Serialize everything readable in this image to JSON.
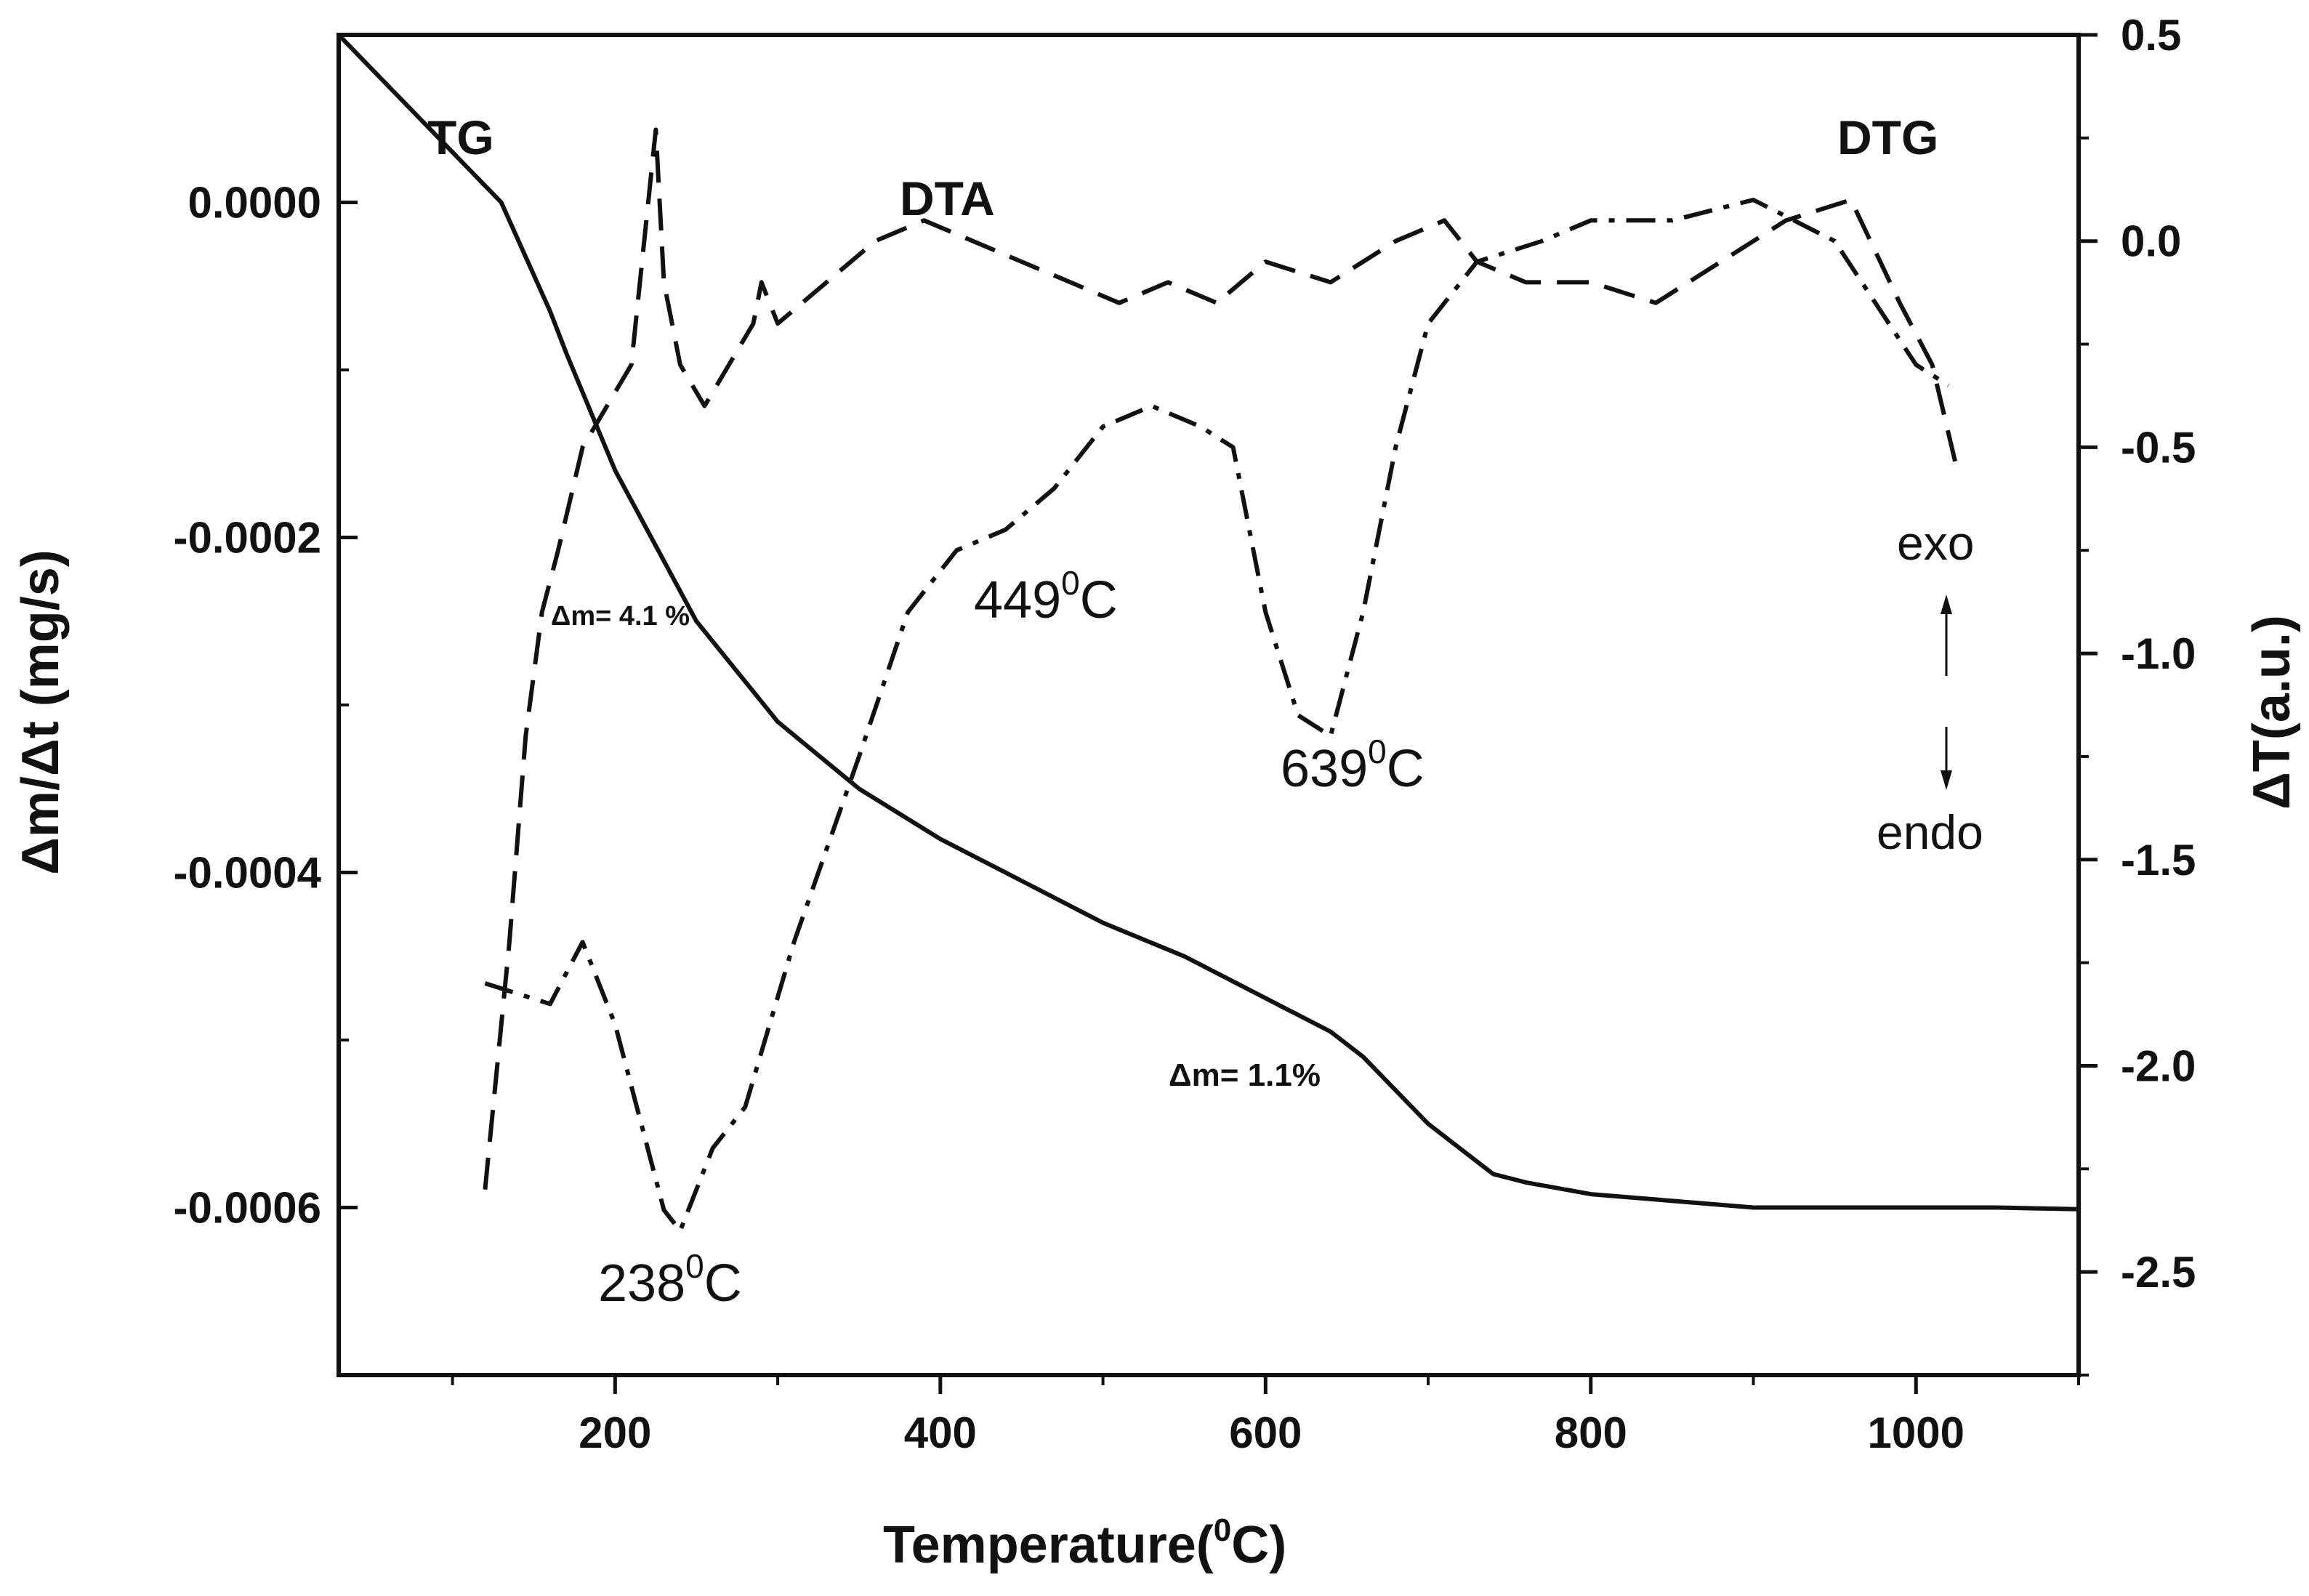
{
  "chart_data": {
    "type": "line",
    "title": "",
    "xlabel": "Temperature(",
    "xlabel_sup": "0",
    "xlabel_unit": "C)",
    "ylabel_left": "Δm/Δt (mg/s)",
    "ylabel_right": "ΔT(a.u.)",
    "xlim": [
      30,
      1100
    ],
    "ylim_left": [
      -0.0007,
      0.0001
    ],
    "ylim_right": [
      -2.75,
      0.5
    ],
    "x_ticks": [
      200,
      400,
      600,
      800,
      1000
    ],
    "x_tick_labels": [
      "200",
      "400",
      "600",
      "800",
      "1000"
    ],
    "y_left_ticks": [
      0.0,
      -0.0002,
      -0.0004,
      -0.0006
    ],
    "y_left_tick_labels": [
      "0.0000",
      "-0.0002",
      "-0.0004",
      "-0.0006"
    ],
    "y_right_ticks": [
      0.5,
      0.0,
      -0.5,
      -1.0,
      -1.5,
      -2.0,
      -2.5
    ],
    "y_right_tick_labels": [
      "0.5",
      "0.0",
      "-0.5",
      "-1.0",
      "-1.5",
      "-2.0",
      "-2.5"
    ],
    "grid": false,
    "series": [
      {
        "name": "TG",
        "axis": "left",
        "style": "solid",
        "x": [
          30,
          60,
          100,
          130,
          160,
          170,
          200,
          250,
          300,
          350,
          400,
          450,
          500,
          550,
          600,
          640,
          660,
          700,
          740,
          760,
          800,
          900,
          1000,
          1050,
          1100
        ],
        "y": [
          0.0001,
          7e-05,
          3e-05,
          0.0,
          -6.5e-05,
          -9e-05,
          -0.00016,
          -0.00025,
          -0.00031,
          -0.00035,
          -0.00038,
          -0.000405,
          -0.00043,
          -0.00045,
          -0.000475,
          -0.000495,
          -0.00051,
          -0.00055,
          -0.00058,
          -0.000585,
          -0.000592,
          -0.0006,
          -0.0006,
          -0.0006,
          -0.000601
        ]
      },
      {
        "name": "DTA",
        "axis": "right",
        "style": "dashed",
        "x": [
          120,
          135,
          145,
          155,
          165,
          180,
          195,
          210,
          225,
          230,
          240,
          255,
          270,
          285,
          290,
          300,
          330,
          360,
          390,
          420,
          450,
          480,
          510,
          540,
          570,
          600,
          640,
          680,
          710,
          730,
          760,
          800,
          840,
          880,
          920,
          960,
          990,
          1010,
          1025
        ],
        "y": [
          -2.3,
          -1.7,
          -1.2,
          -0.9,
          -0.75,
          -0.5,
          -0.4,
          -0.3,
          0.27,
          -0.1,
          -0.3,
          -0.4,
          -0.3,
          -0.2,
          -0.1,
          -0.2,
          -0.1,
          0.0,
          0.05,
          0.0,
          -0.05,
          -0.1,
          -0.15,
          -0.1,
          -0.15,
          -0.05,
          -0.1,
          0.0,
          0.05,
          -0.05,
          -0.1,
          -0.1,
          -0.15,
          -0.05,
          0.05,
          0.1,
          -0.15,
          -0.3,
          -0.55
        ]
      },
      {
        "name": "DTG",
        "axis": "right",
        "style": "dashdot",
        "x": [
          120,
          160,
          180,
          200,
          230,
          240,
          260,
          280,
          310,
          350,
          380,
          410,
          440,
          470,
          500,
          530,
          560,
          580,
          600,
          620,
          640,
          660,
          680,
          700,
          730,
          770,
          800,
          850,
          900,
          950,
          1000,
          1020
        ],
        "y": [
          -1.8,
          -1.85,
          -1.7,
          -1.9,
          -2.35,
          -2.4,
          -2.2,
          -2.1,
          -1.7,
          -1.25,
          -0.9,
          -0.75,
          -0.7,
          -0.6,
          -0.45,
          -0.4,
          -0.45,
          -0.5,
          -0.9,
          -1.15,
          -1.2,
          -0.9,
          -0.5,
          -0.2,
          -0.05,
          0.0,
          0.05,
          0.05,
          0.1,
          0.0,
          -0.3,
          -0.35
        ]
      }
    ],
    "annotations": {
      "tg": "TG",
      "dta": "DTA",
      "dtg": "DTG",
      "dm1": "Δm= 4.1 %",
      "dm2": "Δm= 1.1%",
      "peak1_num": "238",
      "peak1_sup": "0",
      "peak1_unit": "C",
      "peak2_num": "449",
      "peak2_sup": "0",
      "peak2_unit": "C",
      "peak3_num": "639",
      "peak3_sup": "0",
      "peak3_unit": "C",
      "exo": "exo",
      "endo": "endo"
    }
  }
}
